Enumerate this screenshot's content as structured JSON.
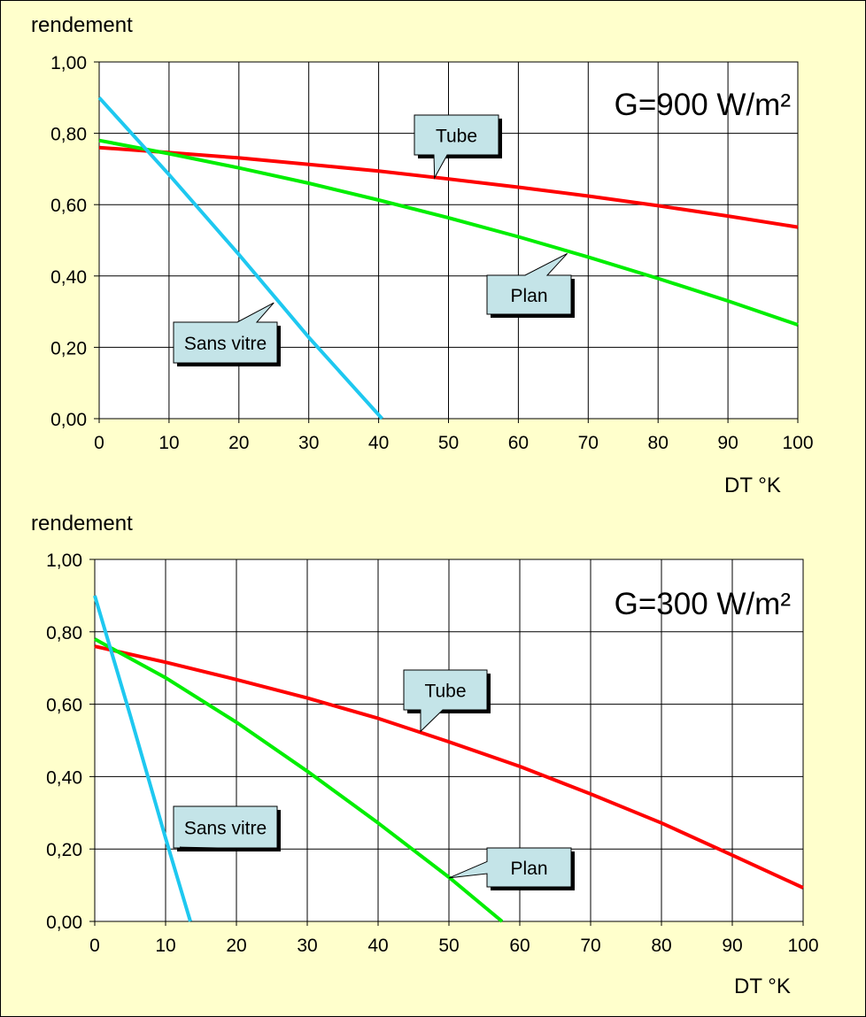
{
  "chart_data": [
    {
      "type": "line",
      "ylabel": "rendement",
      "xlabel": "DT °K",
      "annotation": "G=900 W/m²",
      "xlim": [
        0,
        100
      ],
      "ylim": [
        0,
        1
      ],
      "x_ticks": [
        0,
        10,
        20,
        30,
        40,
        50,
        60,
        70,
        80,
        90,
        100
      ],
      "x_tick_labels": [
        "0",
        "10",
        "20",
        "30",
        "40",
        "50",
        "60",
        "70",
        "80",
        "90",
        "100"
      ],
      "y_ticks": [
        0,
        0.2,
        0.4,
        0.6,
        0.8,
        1.0
      ],
      "y_tick_labels": [
        "0,00",
        "0,20",
        "0,40",
        "0,60",
        "0,80",
        "1,00"
      ],
      "grid": true,
      "series": [
        {
          "name": "Tube",
          "color": "#ff0000",
          "points": [
            [
              0,
              0.76
            ],
            [
              10,
              0.746
            ],
            [
              20,
              0.731
            ],
            [
              30,
              0.713
            ],
            [
              40,
              0.694
            ],
            [
              50,
              0.672
            ],
            [
              60,
              0.649
            ],
            [
              70,
              0.624
            ],
            [
              80,
              0.597
            ],
            [
              90,
              0.568
            ],
            [
              100,
              0.537
            ]
          ]
        },
        {
          "name": "Plan",
          "color": "#00ee00",
          "points": [
            [
              0,
              0.78
            ],
            [
              10,
              0.743
            ],
            [
              20,
              0.703
            ],
            [
              30,
              0.66
            ],
            [
              40,
              0.613
            ],
            [
              50,
              0.563
            ],
            [
              60,
              0.51
            ],
            [
              70,
              0.453
            ],
            [
              80,
              0.393
            ],
            [
              90,
              0.33
            ],
            [
              100,
              0.263
            ]
          ]
        },
        {
          "name": "Sans vitre",
          "color": "#1ec8f0",
          "points": [
            [
              0,
              0.9
            ],
            [
              10,
              0.684
            ],
            [
              20,
              0.46
            ],
            [
              30,
              0.228
            ],
            [
              40.5,
              0.0
            ]
          ]
        }
      ],
      "callouts": [
        {
          "series": "Tube",
          "label": "Tube"
        },
        {
          "series": "Plan",
          "label": "Plan"
        },
        {
          "series": "Sans vitre",
          "label": "Sans vitre"
        }
      ]
    },
    {
      "type": "line",
      "ylabel": "rendement",
      "xlabel": "DT °K",
      "annotation": "G=300 W/m²",
      "xlim": [
        0,
        100
      ],
      "ylim": [
        0,
        1
      ],
      "x_ticks": [
        0,
        10,
        20,
        30,
        40,
        50,
        60,
        70,
        80,
        90,
        100
      ],
      "x_tick_labels": [
        "0",
        "10",
        "20",
        "30",
        "40",
        "50",
        "60",
        "70",
        "80",
        "90",
        "100"
      ],
      "y_ticks": [
        0,
        0.2,
        0.4,
        0.6,
        0.8,
        1.0
      ],
      "y_tick_labels": [
        "0,00",
        "0,20",
        "0,40",
        "0,60",
        "0,80",
        "1,00"
      ],
      "grid": true,
      "series": [
        {
          "name": "Tube",
          "color": "#ff0000",
          "points": [
            [
              0,
              0.76
            ],
            [
              10,
              0.716
            ],
            [
              20,
              0.668
            ],
            [
              30,
              0.617
            ],
            [
              40,
              0.561
            ],
            [
              50,
              0.496
            ],
            [
              60,
              0.428
            ],
            [
              70,
              0.352
            ],
            [
              80,
              0.272
            ],
            [
              90,
              0.183
            ],
            [
              100,
              0.093
            ]
          ]
        },
        {
          "name": "Plan",
          "color": "#00ee00",
          "points": [
            [
              0,
              0.78
            ],
            [
              10,
              0.673
            ],
            [
              20,
              0.55
            ],
            [
              30,
              0.415
            ],
            [
              40,
              0.272
            ],
            [
              50,
              0.122
            ],
            [
              57.5,
              0.0
            ]
          ]
        },
        {
          "name": "Sans vitre",
          "color": "#1ec8f0",
          "points": [
            [
              0,
              0.9
            ],
            [
              5,
              0.57
            ],
            [
              10,
              0.23
            ],
            [
              13.5,
              0.0
            ]
          ]
        }
      ],
      "callouts": [
        {
          "series": "Tube",
          "label": "Tube"
        },
        {
          "series": "Plan",
          "label": "Plan"
        },
        {
          "series": "Sans vitre",
          "label": "Sans vitre"
        }
      ]
    }
  ]
}
